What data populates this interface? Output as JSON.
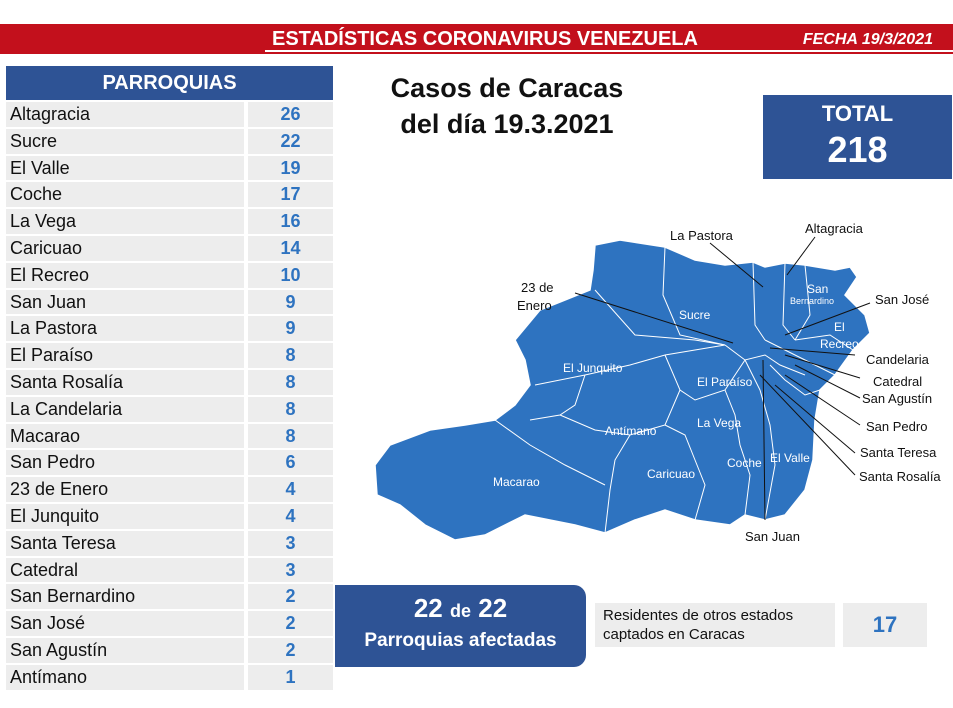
{
  "header": {
    "title": "ESTADÍSTICAS CORONAVIRUS VENEZUELA",
    "fecha": "FECHA 19/3/2021"
  },
  "parroquias": {
    "heading": "PARROQUIAS",
    "rows": [
      {
        "name": "Altagracia",
        "value": "26"
      },
      {
        "name": "Sucre",
        "value": "22"
      },
      {
        "name": "El Valle",
        "value": "19"
      },
      {
        "name": "Coche",
        "value": "17"
      },
      {
        "name": "La Vega",
        "value": "16"
      },
      {
        "name": "Caricuao",
        "value": "14"
      },
      {
        "name": "El Recreo",
        "value": "10"
      },
      {
        "name": "San Juan",
        "value": "9"
      },
      {
        "name": "La Pastora",
        "value": "9"
      },
      {
        "name": "El Paraíso",
        "value": "8"
      },
      {
        "name": "Santa Rosalía",
        "value": "8"
      },
      {
        "name": "La Candelaria",
        "value": "8"
      },
      {
        "name": "Macarao",
        "value": "8"
      },
      {
        "name": "San Pedro",
        "value": "6"
      },
      {
        "name": "23 de Enero",
        "value": "4"
      },
      {
        "name": "El Junquito",
        "value": "4"
      },
      {
        "name": "Santa Teresa",
        "value": "3"
      },
      {
        "name": "Catedral",
        "value": "3"
      },
      {
        "name": "San Bernardino",
        "value": "2"
      },
      {
        "name": "San José",
        "value": "2"
      },
      {
        "name": "San Agustín",
        "value": "2"
      },
      {
        "name": "Antímano",
        "value": "1"
      }
    ]
  },
  "casos": {
    "line1": "Casos de Caracas",
    "line2": "del día 19.3.2021"
  },
  "total": {
    "label": "TOTAL",
    "value": "218"
  },
  "map": {
    "outside_labels": {
      "la_pastora": "La Pastora",
      "altagracia": "Altagracia",
      "veintitres_a": "23 de",
      "veintitres_b": "Enero",
      "san_jose": "San José",
      "candelaria": "Candelaria",
      "catedral": "Catedral",
      "san_agustin": "San Agustín",
      "san_pedro": "San Pedro",
      "santa_teresa": "Santa Teresa",
      "santa_rosalia": "Santa Rosalía",
      "san_juan": "San Juan"
    },
    "inside_labels": {
      "sucre": "Sucre",
      "el_junquito": "El Junquito",
      "el_paraiso": "El Paraíso",
      "la_vega": "La Vega",
      "antimano": "Antímano",
      "caricuao": "Caricuao",
      "coche": "Coche",
      "el_valle": "El Valle",
      "macarao": "Macarao",
      "san_bernardino_a": "San",
      "san_bernardino_b": "Bernardino",
      "el_recreo_a": "El",
      "el_recreo_b": "Recreo"
    },
    "fill_color": "#2e73c0"
  },
  "afectadas": {
    "num1": "22",
    "de": "de",
    "num2": "22",
    "label": "Parroquias afectadas"
  },
  "residentes": {
    "line1": "Residentes de otros estados",
    "line2": "captados en Caracas",
    "value": "17"
  },
  "colors": {
    "header_red": "#c3101c",
    "panel_blue": "#2e5395",
    "value_blue": "#2e73c0"
  }
}
